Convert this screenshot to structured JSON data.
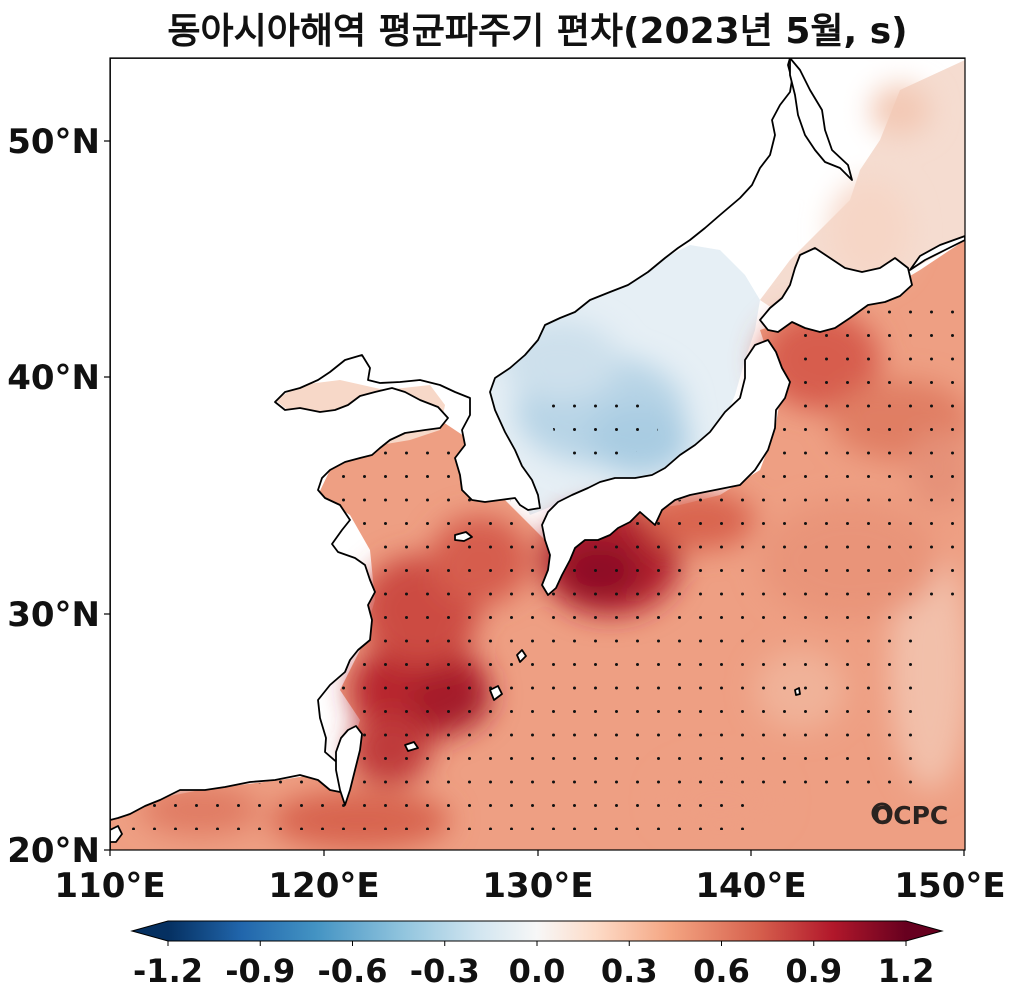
{
  "title": "동아시아해역 평균파주기 편차(2023년 5월, s)",
  "logo_text": "OCPC",
  "map": {
    "lon_range": [
      110,
      150
    ],
    "lat_range": [
      20,
      53.5
    ],
    "lon_ticks": [
      "110°E",
      "120°E",
      "130°E",
      "140°E",
      "150°E"
    ],
    "lat_ticks": [
      "20°N",
      "30°N",
      "40°N",
      "50°N"
    ],
    "field": "mean wave period anomaly",
    "stippling": "dots mark grid points over most of the warm-anomaly ocean south of ~43°N and the central East Sea",
    "features": {
      "east_sea_center": "negative anomaly about -0.2 to -0.3",
      "south_of_japan_near_32N_133E": "positive anomaly about 1.0 to 1.2",
      "east_china_sea_near_26N_125E": "positive anomaly about 1.0",
      "northwest_pacific": "positive anomaly about 0.5 to 0.8"
    }
  },
  "colorbar": {
    "min": -1.2,
    "max": 1.2,
    "extend": "both",
    "tick_labels": [
      "-1.2",
      "-0.9",
      "-0.6",
      "-0.3",
      "0.0",
      "0.3",
      "0.6",
      "0.9",
      "1.2"
    ],
    "colors": [
      "#053061",
      "#2166ac",
      "#4393c3",
      "#92c5de",
      "#d1e5f0",
      "#f7f7f7",
      "#fddbc7",
      "#f4a582",
      "#d6604d",
      "#b2182b",
      "#67001f"
    ]
  }
}
